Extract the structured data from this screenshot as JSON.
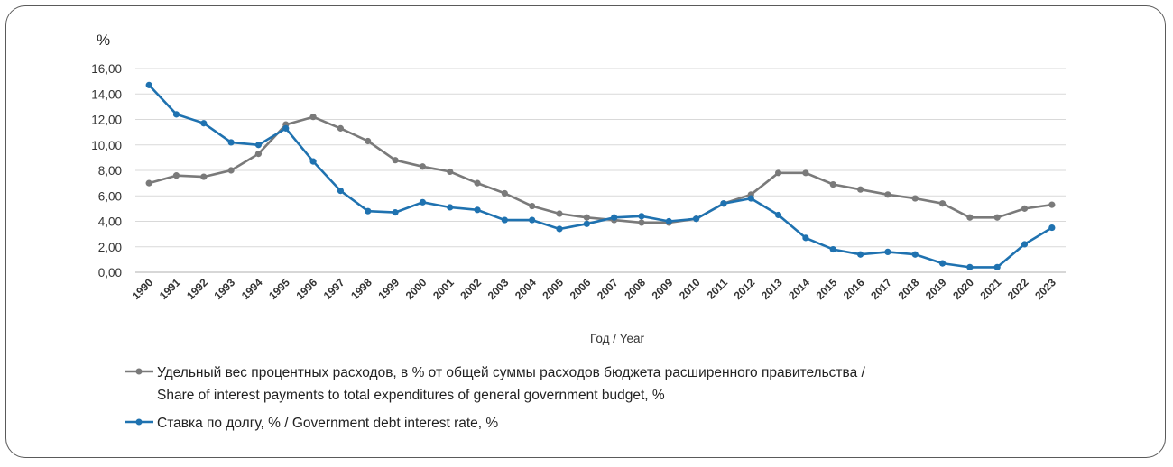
{
  "chart_data": {
    "type": "line",
    "title": "",
    "ylabel": "%",
    "xlabel": "Год / Year",
    "ylim": [
      0,
      16
    ],
    "yticks": [
      "0,00",
      "2,00",
      "4,00",
      "6,00",
      "8,00",
      "10,00",
      "12,00",
      "14,00",
      "16,00"
    ],
    "grid": true,
    "legend_position": "bottom",
    "categories": [
      "1990",
      "1991",
      "1992",
      "1993",
      "1994",
      "1995",
      "1996",
      "1997",
      "1998",
      "1999",
      "2000",
      "2001",
      "2002",
      "2003",
      "2004",
      "2005",
      "2006",
      "2007",
      "2008",
      "2009",
      "2010",
      "2011",
      "2012",
      "2013",
      "2014",
      "2015",
      "2016",
      "2017",
      "2018",
      "2019",
      "2020",
      "2021",
      "2022",
      "2023"
    ],
    "series": [
      {
        "name_line1": "Удельный вес процентных расходов, в % от общей суммы расходов бюджета расширенного правительства /",
        "name_line2": "Share of interest payments to total expenditures of general government budget, %",
        "color": "#7a7a7a",
        "values": [
          7.0,
          7.6,
          7.5,
          8.0,
          9.3,
          11.6,
          12.2,
          11.3,
          10.3,
          8.8,
          8.3,
          7.9,
          7.0,
          6.2,
          5.2,
          4.6,
          4.3,
          4.1,
          3.9,
          3.9,
          4.2,
          5.4,
          6.1,
          7.8,
          7.8,
          6.9,
          6.5,
          6.1,
          5.8,
          5.4,
          4.3,
          4.3,
          5.0,
          5.3
        ]
      },
      {
        "name_line1": "Ставка по долгу, % / Government debt interest rate, %",
        "name_line2": "",
        "color": "#1f72b0",
        "values": [
          14.7,
          12.4,
          11.7,
          10.2,
          10.0,
          11.3,
          8.7,
          6.4,
          4.8,
          4.7,
          5.5,
          5.1,
          4.9,
          4.1,
          4.1,
          3.4,
          3.8,
          4.3,
          4.4,
          4.0,
          4.2,
          5.4,
          5.8,
          4.5,
          2.7,
          1.8,
          1.4,
          1.6,
          1.4,
          0.7,
          0.4,
          0.4,
          2.2,
          3.5
        ]
      }
    ]
  }
}
